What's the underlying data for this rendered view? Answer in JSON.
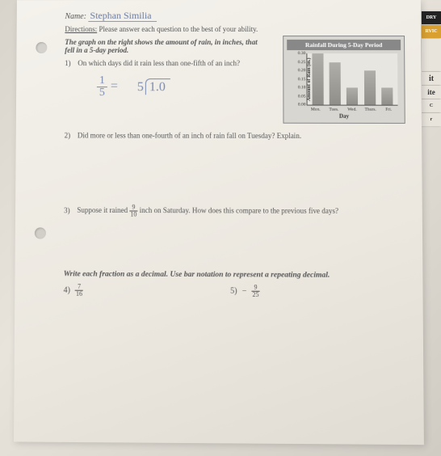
{
  "name_label": "Name:",
  "student_name": "Stephan Similia",
  "directions_label": "Directions:",
  "directions_text": "Please answer each question to the best of your ability.",
  "intro": "The graph on the right shows the amount of rain, in inches, that fell in a 5-day period.",
  "q1": {
    "num": "1)",
    "text": "On which days did it rain less than one-fifth of an inch?"
  },
  "handwork": {
    "frac_n": "1",
    "frac_d": "5",
    "eq": "=",
    "divisor": "5",
    "dividend": "1.0"
  },
  "q2": {
    "num": "2)",
    "text": "Did more or less than one-fourth of an inch of rain fall on Tuesday? Explain."
  },
  "q3": {
    "num": "3)",
    "pre": "Suppose it rained ",
    "frac_n": "9",
    "frac_d": "10",
    "post": " inch on Saturday.  How does this compare to the previous five days?"
  },
  "section2": "Write each fraction as a decimal.  Use bar notation to represent a repeating decimal.",
  "q4": {
    "num": "4)",
    "frac_n": "7",
    "frac_d": "16"
  },
  "q5": {
    "num": "5)",
    "neg": "−",
    "frac_n": "9",
    "frac_d": "25"
  },
  "chart": {
    "title": "Rainfall During 5-Day Period",
    "ylabel": "Amount of Rain (in.)",
    "ymax": 0.3,
    "yticks": [
      "0.30",
      "0.25",
      "0.20",
      "0.15",
      "0.10",
      "0.05",
      "0.00"
    ],
    "categories": [
      "Mon.",
      "Tues.",
      "Wed.",
      "Thurs.",
      "Fri."
    ],
    "values": [
      0.3,
      0.25,
      0.1,
      0.2,
      0.1
    ],
    "bar_color": "#9a9892",
    "xlabel": "Day"
  },
  "tabs": [
    {
      "label": "DRY",
      "color": "#222"
    },
    {
      "label": "RVIC",
      "color": "#d9a030"
    },
    {
      "label": "",
      "color": "#e8e4dc"
    },
    {
      "label": "",
      "color": "#e8e4dc"
    },
    {
      "label": "it",
      "color": "#e8e4dc"
    },
    {
      "label": "ite",
      "color": "#e8e4dc"
    },
    {
      "label": "C",
      "color": "#e8e4dc"
    },
    {
      "label": "r",
      "color": "#e8e4dc"
    }
  ]
}
